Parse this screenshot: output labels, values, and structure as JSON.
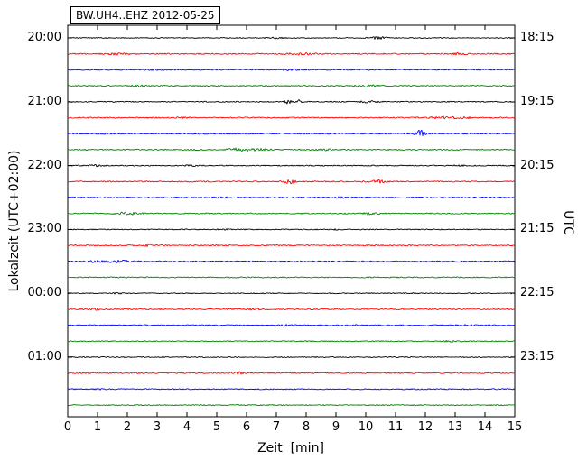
{
  "title": "BW.UH4..EHZ 2012-05-25",
  "axes": {
    "xlabel": "Zeit  [min]",
    "ylabel_left": "Lokalzeit (UTC+02:00)",
    "ylabel_right": "UTC",
    "x_tick_labels": [
      "0",
      "1",
      "2",
      "3",
      "4",
      "5",
      "6",
      "7",
      "8",
      "9",
      "10",
      "11",
      "12",
      "13",
      "14",
      "15"
    ],
    "left_time_labels": [
      {
        "row": 0,
        "text": "20:00"
      },
      {
        "row": 4,
        "text": "21:00"
      },
      {
        "row": 8,
        "text": "22:00"
      },
      {
        "row": 12,
        "text": "23:00"
      },
      {
        "row": 16,
        "text": "00:00"
      },
      {
        "row": 20,
        "text": "01:00"
      }
    ],
    "right_time_labels": [
      {
        "row": 0,
        "text": "18:15"
      },
      {
        "row": 4,
        "text": "19:15"
      },
      {
        "row": 8,
        "text": "20:15"
      },
      {
        "row": 12,
        "text": "21:15"
      },
      {
        "row": 16,
        "text": "22:15"
      },
      {
        "row": 20,
        "text": "23:15"
      }
    ]
  },
  "colors": {
    "black": "#000000",
    "red": "#ff0000",
    "blue": "#0000ff",
    "green": "#008000"
  },
  "chart_data": {
    "type": "line",
    "subtype": "helicorder-dayplot",
    "station": "BW.UH4..EHZ",
    "date": "2012-05-25",
    "title": "BW.UH4..EHZ 2012-05-25",
    "xlabel": "Zeit  [min]",
    "ylabel_left": "Lokalzeit (UTC+02:00)",
    "ylabel_right": "UTC",
    "x_range": [
      0,
      15
    ],
    "minutes_per_line": 15,
    "num_traces": 24,
    "grid": false,
    "legend": false,
    "traces": [
      {
        "local_start": "20:00",
        "utc_start": "18:00",
        "color": "black",
        "noise": 0.5,
        "events": [
          {
            "min": 10.45,
            "amp": 1.2,
            "width": 0.3
          },
          {
            "min": 7.0,
            "amp": 0.5,
            "width": 0.3
          }
        ]
      },
      {
        "local_start": "20:15",
        "utc_start": "18:15",
        "color": "red",
        "noise": 0.65,
        "events": [
          {
            "min": 1.6,
            "amp": 0.7,
            "width": 0.4
          },
          {
            "min": 7.8,
            "amp": 0.9,
            "width": 0.5
          },
          {
            "min": 13.2,
            "amp": 0.8,
            "width": 0.3
          }
        ]
      },
      {
        "local_start": "20:30",
        "utc_start": "18:30",
        "color": "blue",
        "noise": 0.6,
        "events": [
          {
            "min": 7.5,
            "amp": 0.6,
            "width": 0.3
          },
          {
            "min": 3.0,
            "amp": 0.4,
            "width": 0.3
          }
        ]
      },
      {
        "local_start": "20:45",
        "utc_start": "18:45",
        "color": "green",
        "noise": 0.6,
        "events": [
          {
            "min": 10.1,
            "amp": 1.0,
            "width": 0.35
          },
          {
            "min": 2.4,
            "amp": 0.6,
            "width": 0.25
          }
        ]
      },
      {
        "local_start": "21:00",
        "utc_start": "19:00",
        "color": "black",
        "noise": 0.55,
        "events": [
          {
            "min": 7.4,
            "amp": 2.6,
            "width": 0.12
          },
          {
            "min": 7.75,
            "amp": 2.0,
            "width": 0.12
          },
          {
            "min": 10.1,
            "amp": 0.9,
            "width": 0.3
          }
        ]
      },
      {
        "local_start": "21:15",
        "utc_start": "19:15",
        "color": "red",
        "noise": 0.65,
        "events": [
          {
            "min": 3.9,
            "amp": 0.7,
            "width": 0.25
          },
          {
            "min": 12.6,
            "amp": 1.1,
            "width": 0.5
          },
          {
            "min": 13.4,
            "amp": 0.9,
            "width": 0.25
          }
        ]
      },
      {
        "local_start": "21:30",
        "utc_start": "19:30",
        "color": "blue",
        "noise": 0.6,
        "events": [
          {
            "min": 11.82,
            "amp": 3.8,
            "width": 0.15
          },
          {
            "min": 1.2,
            "amp": 0.5,
            "width": 0.3
          }
        ]
      },
      {
        "local_start": "21:45",
        "utc_start": "19:45",
        "color": "green",
        "noise": 0.6,
        "events": [
          {
            "min": 5.6,
            "amp": 1.6,
            "width": 0.25
          },
          {
            "min": 6.1,
            "amp": 1.5,
            "width": 0.3
          },
          {
            "min": 6.6,
            "amp": 1.0,
            "width": 0.2
          },
          {
            "min": 8.6,
            "amp": 0.6,
            "width": 0.3
          }
        ]
      },
      {
        "local_start": "22:00",
        "utc_start": "20:00",
        "color": "black",
        "noise": 0.55,
        "events": [
          {
            "min": 0.9,
            "amp": 0.8,
            "width": 0.25
          },
          {
            "min": 4.1,
            "amp": 0.6,
            "width": 0.25
          },
          {
            "min": 13.1,
            "amp": 0.5,
            "width": 0.25
          }
        ]
      },
      {
        "local_start": "22:15",
        "utc_start": "20:15",
        "color": "red",
        "noise": 0.65,
        "events": [
          {
            "min": 7.45,
            "amp": 2.2,
            "width": 0.2
          },
          {
            "min": 10.4,
            "amp": 1.5,
            "width": 0.25
          }
        ]
      },
      {
        "local_start": "22:30",
        "utc_start": "20:30",
        "color": "blue",
        "noise": 0.6,
        "events": [
          {
            "min": 5.2,
            "amp": 0.5,
            "width": 0.3
          },
          {
            "min": 9.2,
            "amp": 0.5,
            "width": 0.3
          }
        ]
      },
      {
        "local_start": "22:45",
        "utc_start": "20:45",
        "color": "green",
        "noise": 0.6,
        "events": [
          {
            "min": 2.0,
            "amp": 1.1,
            "width": 0.4
          },
          {
            "min": 10.2,
            "amp": 0.8,
            "width": 0.3
          }
        ]
      },
      {
        "local_start": "23:00",
        "utc_start": "21:00",
        "color": "black",
        "noise": 0.5,
        "events": [
          {
            "min": 5.2,
            "amp": 0.5,
            "width": 0.2
          },
          {
            "min": 9.0,
            "amp": 0.4,
            "width": 0.2
          }
        ]
      },
      {
        "local_start": "23:15",
        "utc_start": "21:15",
        "color": "red",
        "noise": 0.65,
        "events": [
          {
            "min": 2.7,
            "amp": 1.2,
            "width": 0.1
          }
        ]
      },
      {
        "local_start": "23:30",
        "utc_start": "21:30",
        "color": "blue",
        "noise": 0.6,
        "events": [
          {
            "min": 1.1,
            "amp": 1.4,
            "width": 0.35
          },
          {
            "min": 1.8,
            "amp": 1.1,
            "width": 0.3
          }
        ]
      },
      {
        "local_start": "23:45",
        "utc_start": "21:45",
        "color": "green",
        "noise": 0.55,
        "events": [
          {
            "min": 6.0,
            "amp": 0.4,
            "width": 0.3
          }
        ]
      },
      {
        "local_start": "00:00",
        "utc_start": "22:00",
        "color": "black",
        "noise": 0.5,
        "events": [
          {
            "min": 1.7,
            "amp": 1.0,
            "width": 0.15
          }
        ]
      },
      {
        "local_start": "00:15",
        "utc_start": "22:15",
        "color": "red",
        "noise": 0.65,
        "events": [
          {
            "min": 1.0,
            "amp": 0.8,
            "width": 0.2
          },
          {
            "min": 6.3,
            "amp": 0.5,
            "width": 0.3
          }
        ]
      },
      {
        "local_start": "00:30",
        "utc_start": "22:30",
        "color": "blue",
        "noise": 0.6,
        "events": [
          {
            "min": 7.45,
            "amp": 1.0,
            "width": 0.2
          },
          {
            "min": 9.5,
            "amp": 1.0,
            "width": 0.2
          },
          {
            "min": 13.3,
            "amp": 0.6,
            "width": 0.25
          }
        ]
      },
      {
        "local_start": "00:45",
        "utc_start": "22:45",
        "color": "green",
        "noise": 0.55,
        "events": [
          {
            "min": 12.9,
            "amp": 0.7,
            "width": 0.3
          }
        ]
      },
      {
        "local_start": "01:00",
        "utc_start": "23:00",
        "color": "black",
        "noise": 0.5,
        "events": []
      },
      {
        "local_start": "01:15",
        "utc_start": "23:15",
        "color": "red",
        "noise": 0.65,
        "events": [
          {
            "min": 5.7,
            "amp": 1.4,
            "width": 0.2
          }
        ]
      },
      {
        "local_start": "01:30",
        "utc_start": "23:30",
        "color": "blue",
        "noise": 0.6,
        "events": [
          {
            "min": 1.1,
            "amp": 0.5,
            "width": 0.25
          }
        ]
      },
      {
        "local_start": "01:45",
        "utc_start": "23:45",
        "color": "green",
        "noise": 0.55,
        "events": []
      }
    ]
  }
}
